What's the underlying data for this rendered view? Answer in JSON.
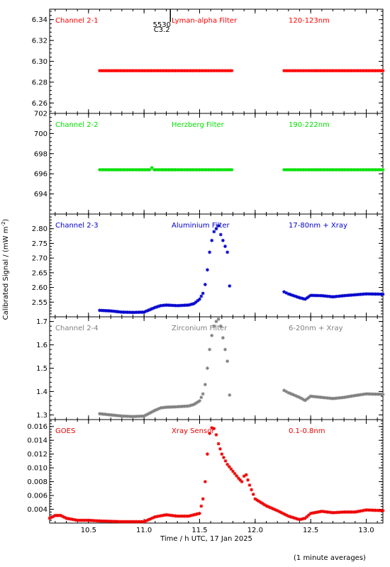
{
  "chart_data": {
    "type": "scatter",
    "xlabel": "Time / h UTC, 17 Jan 2025",
    "ylabel": "Calibrated Signal / (mW m",
    "ylabel_sup": "-2",
    "xlim": [
      10.15,
      13.15
    ],
    "xticks": [
      10.5,
      11.0,
      11.5,
      12.0,
      12.5,
      13.0
    ],
    "xtick_labels": [
      "10.5",
      "11.0",
      "11.5",
      "12.0",
      "12.5",
      "13.0"
    ],
    "note": "(1 minute averages)",
    "annotation": {
      "text1": "5530",
      "text2": "C3.2",
      "x": 11.16
    },
    "panels": [
      {
        "channel": "Channel 2-1",
        "filter": "Lyman-alpha Filter",
        "band": "120-123nm",
        "color": "#ff0000",
        "ylim": [
          6.25,
          6.35
        ],
        "yticks": [
          6.26,
          6.28,
          6.3,
          6.32,
          6.34
        ],
        "ytick_labels": [
          "6.26",
          "6.28",
          "6.30",
          "6.32",
          "6.34"
        ],
        "series": [
          {
            "x": [
              10.6,
              10.8,
              11.0,
              11.2,
              11.4,
              11.6,
              11.79
            ],
            "y": [
              6.291,
              6.291,
              6.291,
              6.291,
              6.291,
              6.291,
              6.291
            ]
          },
          {
            "x": [
              12.26,
              12.5,
              12.75,
              13.0,
              13.15
            ],
            "y": [
              6.291,
              6.291,
              6.291,
              6.291,
              6.291
            ]
          }
        ]
      },
      {
        "channel": "Channel 2-2",
        "filter": "Herzberg Filter",
        "band": "190-222nm",
        "color": "#00e000",
        "ylim": [
          692,
          702
        ],
        "yticks": [
          694,
          696,
          698,
          700,
          702
        ],
        "ytick_labels": [
          "694",
          "696",
          "698",
          "700",
          "702"
        ],
        "series": [
          {
            "x": [
              10.6,
              10.9,
              11.05,
              11.07,
              11.09,
              11.3,
              11.6,
              11.79
            ],
            "y": [
              696.4,
              696.4,
              696.4,
              696.6,
              696.4,
              696.4,
              696.4,
              696.4
            ]
          },
          {
            "x": [
              12.26,
              12.5,
              12.75,
              13.0,
              13.15
            ],
            "y": [
              696.4,
              696.4,
              696.4,
              696.4,
              696.4
            ]
          }
        ]
      },
      {
        "channel": "Channel 2-3",
        "filter": "Aluminium Filter",
        "band": "17-80nm + Xray",
        "color": "#0000cc",
        "ylim": [
          2.5,
          2.85
        ],
        "yticks": [
          2.55,
          2.6,
          2.65,
          2.7,
          2.75,
          2.8
        ],
        "ytick_labels": [
          "2.55",
          "2.60",
          "2.65",
          "2.70",
          "2.75",
          "2.80"
        ],
        "series": [
          {
            "x": [
              10.6,
              10.7,
              10.8,
              10.9,
              11.0,
              11.1,
              11.15,
              11.2,
              11.3,
              11.4,
              11.45,
              11.5,
              11.53,
              11.55,
              11.57,
              11.59,
              11.61,
              11.63,
              11.65,
              11.67,
              11.69,
              11.71,
              11.73,
              11.75,
              11.77
            ],
            "y": [
              2.522,
              2.52,
              2.516,
              2.515,
              2.516,
              2.532,
              2.538,
              2.54,
              2.538,
              2.54,
              2.545,
              2.56,
              2.58,
              2.61,
              2.66,
              2.72,
              2.76,
              2.79,
              2.8,
              2.81,
              2.78,
              2.76,
              2.74,
              2.72,
              2.605
            ]
          },
          {
            "x": [
              12.26,
              12.3,
              12.4,
              12.45,
              12.5,
              12.6,
              12.7,
              12.8,
              12.9,
              13.0,
              13.15
            ],
            "y": [
              2.585,
              2.578,
              2.565,
              2.56,
              2.573,
              2.572,
              2.568,
              2.572,
              2.575,
              2.578,
              2.577
            ]
          }
        ]
      },
      {
        "channel": "Channel 2-4",
        "filter": "Zirconium Filter",
        "band": "6-20nm + Xray",
        "color": "#808080",
        "ylim": [
          1.28,
          1.72
        ],
        "yticks": [
          1.3,
          1.4,
          1.5,
          1.6,
          1.7
        ],
        "ytick_labels": [
          "1.3",
          "1.4",
          "1.5",
          "1.6",
          "1.7"
        ],
        "series": [
          {
            "x": [
              10.6,
              10.7,
              10.8,
              10.9,
              11.0,
              11.1,
              11.15,
              11.2,
              11.3,
              11.4,
              11.45,
              11.5,
              11.53,
              11.55,
              11.57,
              11.59,
              11.61,
              11.63,
              11.65,
              11.67,
              11.69,
              11.71,
              11.73,
              11.75,
              11.77
            ],
            "y": [
              1.305,
              1.3,
              1.295,
              1.293,
              1.295,
              1.32,
              1.33,
              1.333,
              1.335,
              1.338,
              1.345,
              1.36,
              1.39,
              1.43,
              1.5,
              1.58,
              1.64,
              1.68,
              1.7,
              1.71,
              1.68,
              1.63,
              1.58,
              1.53,
              1.385
            ]
          },
          {
            "x": [
              12.26,
              12.3,
              12.4,
              12.45,
              12.5,
              12.6,
              12.7,
              12.8,
              12.9,
              13.0,
              13.15
            ],
            "y": [
              1.405,
              1.395,
              1.375,
              1.362,
              1.38,
              1.375,
              1.37,
              1.375,
              1.383,
              1.39,
              1.388
            ]
          }
        ]
      },
      {
        "channel": "GOES",
        "filter": "Xray Sensor",
        "band": "0.1-0.8nm",
        "color": "#ee0000",
        "ylim": [
          0.002,
          0.017
        ],
        "yticks": [
          0.004,
          0.006,
          0.008,
          0.01,
          0.012,
          0.014,
          0.016
        ],
        "ytick_labels": [
          "0.004",
          "0.006",
          "0.008",
          "0.010",
          "0.012",
          "0.014",
          "0.016"
        ],
        "series": [
          {
            "x": [
              10.15,
              10.2,
              10.25,
              10.3,
              10.4,
              10.5,
              10.6,
              10.8,
              11.0,
              11.1,
              11.2,
              11.3,
              11.4,
              11.5,
              11.53,
              11.55,
              11.57,
              11.59,
              11.61,
              11.63,
              11.65,
              11.67,
              11.7,
              11.75,
              11.8,
              11.85,
              11.88,
              11.9,
              11.92,
              11.95,
              12.0,
              12.1,
              12.2,
              12.3,
              12.4,
              12.45,
              12.5,
              12.6,
              12.7,
              12.8,
              12.9,
              13.0,
              13.15
            ],
            "y": [
              0.0027,
              0.0031,
              0.0031,
              0.0027,
              0.0024,
              0.0024,
              0.0023,
              0.0022,
              0.0022,
              0.0029,
              0.0032,
              0.003,
              0.003,
              0.0034,
              0.0055,
              0.008,
              0.012,
              0.015,
              0.0158,
              0.0157,
              0.0148,
              0.0135,
              0.012,
              0.0105,
              0.0095,
              0.0085,
              0.008,
              0.0088,
              0.009,
              0.0075,
              0.0055,
              0.0045,
              0.0038,
              0.003,
              0.0025,
              0.0027,
              0.0034,
              0.0037,
              0.0035,
              0.0036,
              0.0036,
              0.0039,
              0.0038
            ]
          }
        ]
      }
    ]
  }
}
